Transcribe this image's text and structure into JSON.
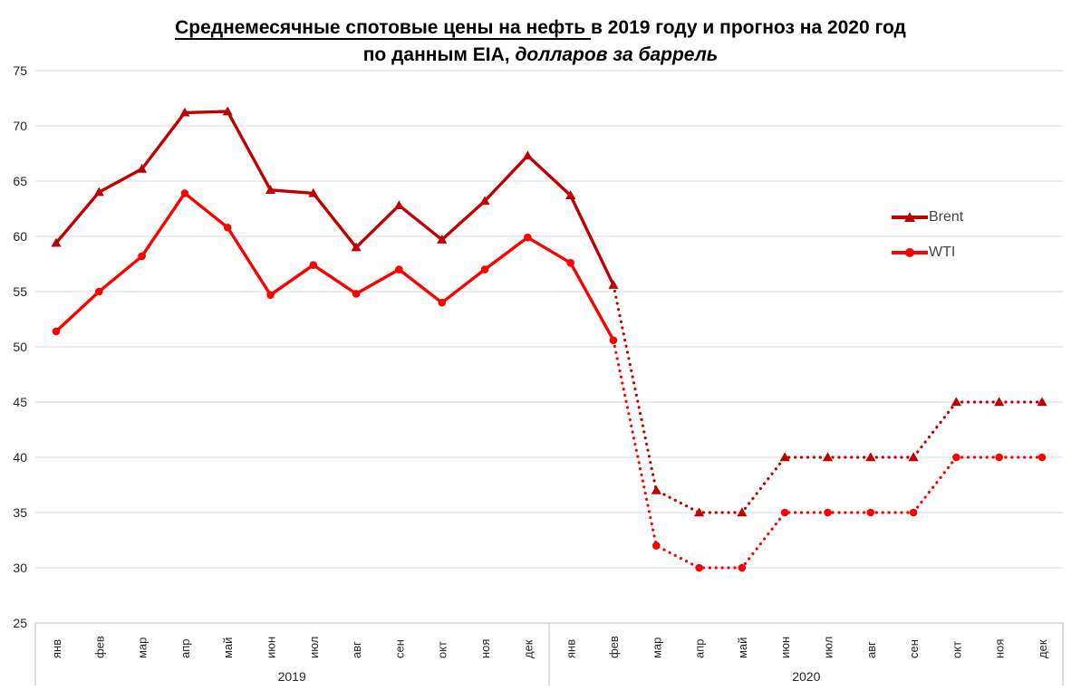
{
  "title": {
    "line1_underlined": "Среднемесячные спотовые цены на нефть ",
    "line1_rest": "в 2019 году и прогноз на 2020 год",
    "line2_plain": "по данным EIA, ",
    "line2_italic": "долларов за баррель"
  },
  "colors": {
    "brent": "#C00000",
    "wti": "#FF0000",
    "gridline": "#D9D9D9",
    "axis_frame": "#BFBFBF",
    "axis_text": "#262626",
    "legend_text": "#444444"
  },
  "chart_data": {
    "type": "line",
    "title": "Среднемесячные спотовые цены на нефть в 2019 году и прогноз на 2020 год по данным EIA, долларов за баррель",
    "ylabel": "долларов за баррель",
    "ylim": [
      25,
      75
    ],
    "yticks": [
      25,
      30,
      35,
      40,
      45,
      50,
      55,
      60,
      65,
      70,
      75
    ],
    "grid": true,
    "legend_position": "right",
    "months": [
      "янв",
      "фев",
      "мар",
      "апр",
      "май",
      "июн",
      "июл",
      "авг",
      "сен",
      "окт",
      "ноя",
      "дек"
    ],
    "year_groups": [
      "2019",
      "2020"
    ],
    "forecast_start_index": 13,
    "forecast_style": "dotted",
    "series": [
      {
        "name": "Brent",
        "color": "#C00000",
        "marker": "triangle",
        "values": [
          59.4,
          64.0,
          66.1,
          71.2,
          71.3,
          64.2,
          63.9,
          59.0,
          62.8,
          59.7,
          63.2,
          67.3,
          63.7,
          55.6,
          37,
          35,
          35,
          40,
          40,
          40,
          40,
          45,
          45,
          45
        ]
      },
      {
        "name": "WTI",
        "color": "#FF0000",
        "marker": "circle",
        "values": [
          51.4,
          55.0,
          58.2,
          63.9,
          60.8,
          54.7,
          57.4,
          54.8,
          57.0,
          54.0,
          57.0,
          59.9,
          57.6,
          50.6,
          32,
          30,
          30,
          35,
          35,
          35,
          35,
          40,
          40,
          40
        ]
      }
    ]
  }
}
